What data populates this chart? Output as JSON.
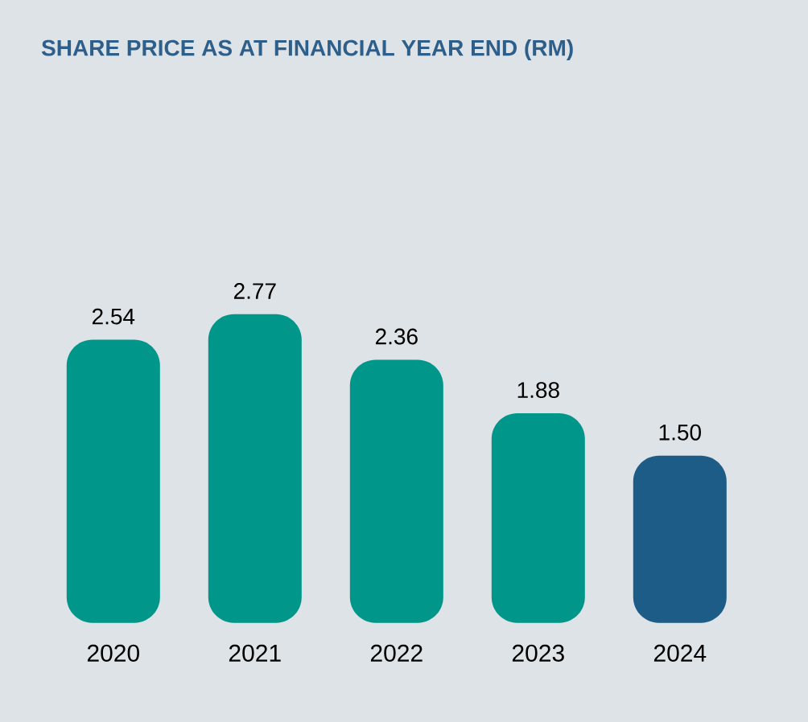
{
  "chart_data": {
    "type": "bar",
    "title": "SHARE PRICE AS AT FINANCIAL YEAR END (RM)",
    "categories": [
      "2020",
      "2021",
      "2022",
      "2023",
      "2024"
    ],
    "values": [
      2.54,
      2.77,
      2.36,
      1.88,
      1.5
    ],
    "colors": [
      "#00968a",
      "#00968a",
      "#00968a",
      "#00968a",
      "#1d5c86"
    ],
    "value_labels": [
      "2.54",
      "2.77",
      "2.36",
      "1.88",
      "1.50"
    ]
  }
}
